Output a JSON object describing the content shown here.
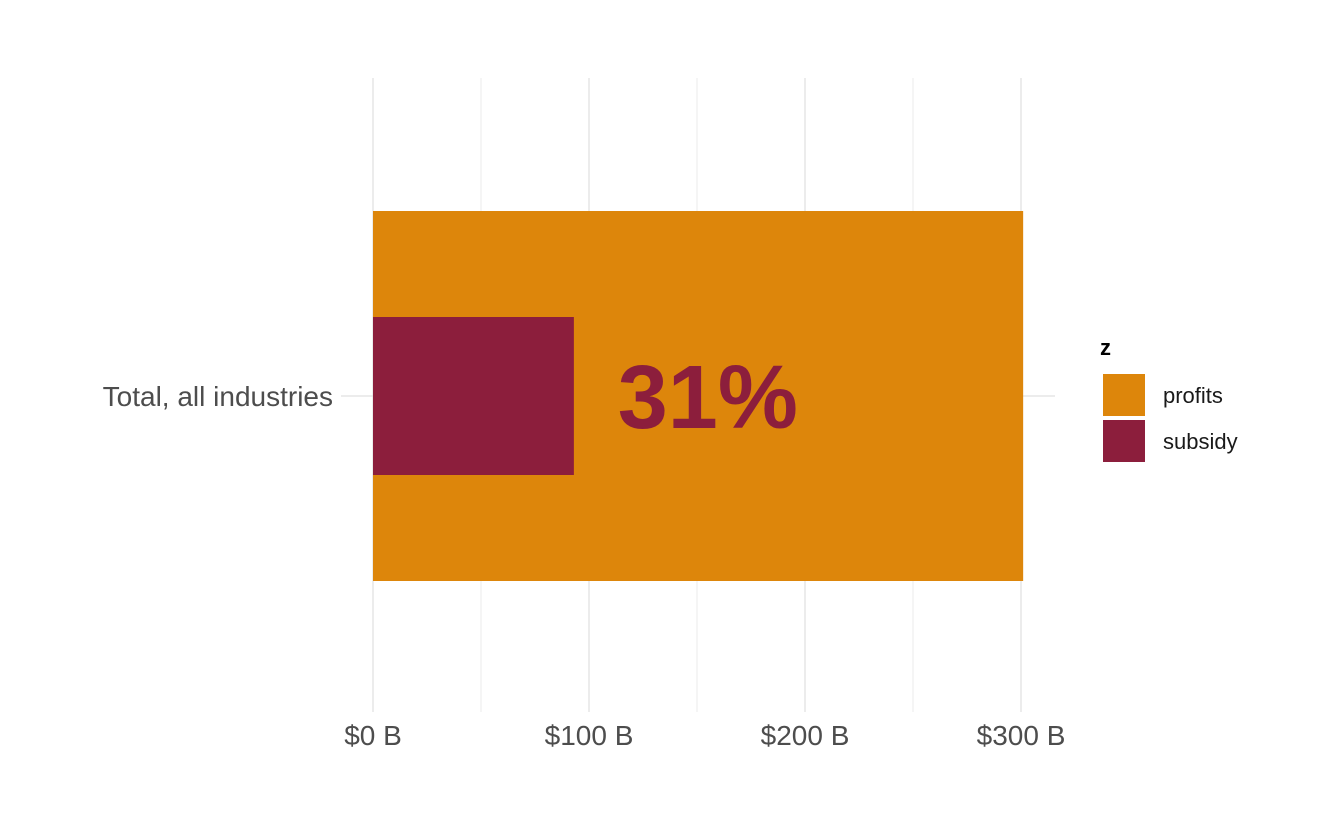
{
  "chart_data": {
    "type": "bar",
    "orientation": "horizontal",
    "categories": [
      "Total, all industries"
    ],
    "series": [
      {
        "name": "profits",
        "values": [
          301
        ],
        "color": "#dd860b"
      },
      {
        "name": "subsidy",
        "values": [
          93
        ],
        "color": "#8c1e3c"
      }
    ],
    "annotation": {
      "text": "31%",
      "x": 155,
      "color": "#8c1e3c"
    },
    "x_ticks": [
      {
        "value": 0,
        "label": "$0 B"
      },
      {
        "value": 100,
        "label": "$100 B"
      },
      {
        "value": 200,
        "label": "$200 B"
      },
      {
        "value": 300,
        "label": "$300 B"
      }
    ],
    "x_minor_ticks": [
      50,
      150,
      250
    ],
    "xlim": [
      0,
      315
    ],
    "grid": true,
    "legend": {
      "title": "z",
      "placement": "right",
      "entries": [
        "profits",
        "subsidy"
      ]
    }
  }
}
